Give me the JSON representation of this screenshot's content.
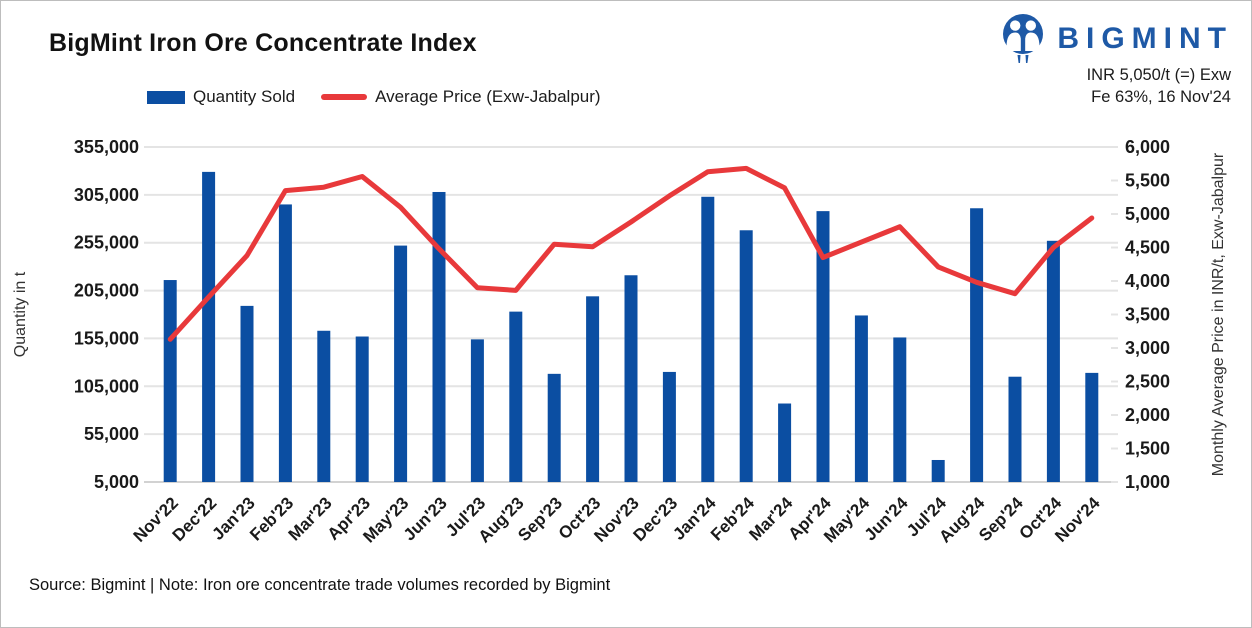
{
  "page": {
    "title": "BigMint Iron Ore Concentrate Index",
    "source_note": "Source: Bigmint | Note: Iron ore concentrate trade volumes recorded by Bigmint"
  },
  "brand": {
    "logo_text": "BIGMINT",
    "logo_color": "#1E59A6",
    "index_line1": "INR 5,050/t (=) Exw",
    "index_line2": "Fe 63%, 16 Nov'24"
  },
  "colors": {
    "bar": "#0B4EA2",
    "line": "#E8393B",
    "grid": "#e4e4e4",
    "baseline": "#d2d2d2",
    "tick_text": "#1a1a1a",
    "axis_title_text": "#333333"
  },
  "chart_data": {
    "type": "bar+line",
    "title": "BigMint Iron Ore Concentrate Index",
    "categories": [
      "Nov'22",
      "Dec'22",
      "Jan'23",
      "Feb'23",
      "Mar'23",
      "Apr'23",
      "May'23",
      "Jun'23",
      "Jul'23",
      "Aug'23",
      "Sep'23",
      "Oct'23",
      "Nov'23",
      "Dec'23",
      "Jan'24",
      "Feb'24",
      "Mar'24",
      "Apr'24",
      "May'24",
      "Jun'24",
      "Jul'24",
      "Aug'24",
      "Sep'24",
      "Oct'24",
      "Nov'24"
    ],
    "series": [
      {
        "name": "Quantity Sold",
        "type": "bar",
        "axis": "left",
        "color": "#0B4EA2",
        "values": [
          216000,
          329000,
          189000,
          295000,
          163000,
          157000,
          252000,
          308000,
          154000,
          183000,
          118000,
          199000,
          221000,
          120000,
          303000,
          268000,
          87000,
          288000,
          179000,
          156000,
          28000,
          291000,
          115000,
          257000,
          119000
        ]
      },
      {
        "name": "Average Price (Exw-Jabalpur)",
        "type": "line",
        "axis": "right",
        "color": "#E8393B",
        "values": [
          3130,
          3760,
          4380,
          5350,
          5400,
          5560,
          5100,
          4480,
          3900,
          3860,
          4550,
          4510,
          4880,
          5270,
          5630,
          5680,
          5390,
          4350,
          4580,
          4810,
          4210,
          3980,
          3810,
          4500,
          4940
        ]
      }
    ],
    "left_axis": {
      "title": "Quantity in t",
      "min": 5000,
      "max": 355000,
      "tick_step": 50000,
      "tick_labels": [
        "5,000",
        "55,000",
        "105,000",
        "155,000",
        "205,000",
        "255,000",
        "305,000",
        "355,000"
      ]
    },
    "right_axis": {
      "title": "Monthly Average Price in INR/t, Exw-Jabalpur",
      "min": 1000,
      "max": 6000,
      "tick_step": 500,
      "tick_labels": [
        "1,000",
        "1,500",
        "2,000",
        "2,500",
        "3,000",
        "3,500",
        "4,000",
        "4,500",
        "5,000",
        "5,500",
        "6,000"
      ]
    },
    "grid": true,
    "legend_position": "top-left"
  }
}
